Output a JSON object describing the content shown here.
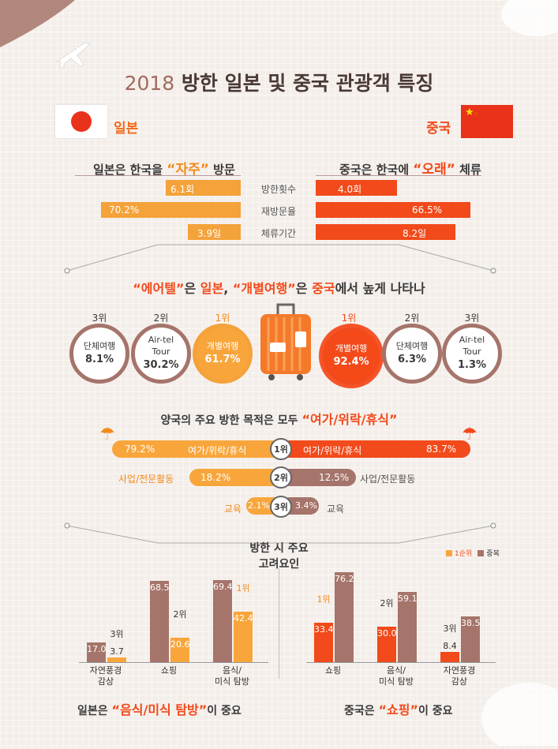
{
  "title_year": "2018",
  "title_rest": "방한 일본 및 중국 관광객 특징",
  "japan_label": "일본",
  "china_label": "중국",
  "japan_head_pre": "일본은 한국을",
  "japan_head_hl": "“자주”",
  "japan_head_post": "방문",
  "china_head_pre": "중국은 한국에",
  "china_head_hl": "“오래”",
  "china_head_post": "체류",
  "compare": [
    {
      "label": "방한횟수",
      "japan": "6.1회",
      "china": "4.0회"
    },
    {
      "label": "재방문율",
      "japan": "70.2%",
      "china": "66.5%"
    },
    {
      "label": "체류기간",
      "japan": "3.9일",
      "china": "8.2일"
    }
  ],
  "travel_head": {
    "a": "“에어텔”",
    "b": "은",
    "c": "일본",
    "d": ",",
    "e": "“개별여행”",
    "f": "은",
    "g": "중국",
    "h": "에서 높게 나타나"
  },
  "japan_types": [
    {
      "rank": "3위",
      "name": "단체여행",
      "value": "8.1%"
    },
    {
      "rank": "2위",
      "name": "Air-tel Tour",
      "value": "30.2%"
    },
    {
      "rank": "1위",
      "name": "개별여행",
      "value": "61.7%"
    }
  ],
  "china_types": [
    {
      "rank": "1위",
      "name": "개별여행",
      "value": "92.4%"
    },
    {
      "rank": "2위",
      "name": "단체여행",
      "value": "6.3%"
    },
    {
      "rank": "3위",
      "name": "Air-tel Tour",
      "value": "1.3%"
    }
  ],
  "purpose_head_pre": "양국의 주요 방한 목적은 모두",
  "purpose_head_hl": "“여가/위락/휴식”",
  "purposes": [
    {
      "rank": "1위",
      "japan_name": "여가/위락/휴식",
      "japan_value": "79.2%",
      "china_name": "여가/위락/휴식",
      "china_value": "83.7%"
    },
    {
      "rank": "2위",
      "japan_name": "사업/전문활동",
      "japan_value": "18.2%",
      "china_name": "사업/전문활동",
      "china_value": "12.5%"
    },
    {
      "rank": "3위",
      "japan_name": "교육",
      "japan_value": "2.1%",
      "china_name": "교육",
      "china_value": "3.4%"
    }
  ],
  "factor_title_1": "방한 시 주요",
  "factor_title_2": "고려요인",
  "legend_first": "1순위",
  "legend_multi": "중복",
  "colors": {
    "brown": "#a5746a",
    "orange": "#f8a63c",
    "red": "#f24a1a"
  },
  "chart_data": [
    {
      "type": "bar",
      "title": "일본 방한 시 주요 고려요인",
      "categories": [
        "자연풍경 감상",
        "쇼핑",
        "음식/미식 탐방"
      ],
      "series": [
        {
          "name": "중복",
          "values": [
            17.0,
            68.5,
            69.4
          ]
        },
        {
          "name": "1순위",
          "values": [
            3.7,
            20.6,
            42.4
          ]
        }
      ],
      "value_labels": {
        "multi": [
          "17.0",
          "68.5",
          "69.4"
        ],
        "first": [
          "3.7",
          "20.6",
          "42.4"
        ]
      },
      "ranks": [
        "3위",
        "2위",
        "1위"
      ],
      "ylim": [
        0,
        80
      ]
    },
    {
      "type": "bar",
      "title": "중국 방한 시 주요 고려요인",
      "categories": [
        "쇼핑",
        "음식/ 미식 탐방",
        "자연풍경 감상"
      ],
      "series": [
        {
          "name": "1순위",
          "values": [
            33.4,
            30.0,
            8.4
          ]
        },
        {
          "name": "중복",
          "values": [
            76.2,
            59.1,
            38.5
          ]
        }
      ],
      "value_labels": {
        "first": [
          "33.4",
          "30.0",
          "8.4"
        ],
        "multi": [
          "76.2",
          "59.1",
          "38.5"
        ]
      },
      "ranks": [
        "1위",
        "2위",
        "3위"
      ],
      "ylim": [
        0,
        80
      ]
    }
  ],
  "japan_factor_cats": [
    "자연풍경\n감상",
    "쇼핑",
    "음식/\n미식 탐방"
  ],
  "china_factor_cats": [
    "쇼핑",
    "음식/\n미식 탐방",
    "자연풍경\n감상"
  ],
  "japan_conclusion": {
    "pre": "일본은",
    "hl": "“음식/미식 탐방”",
    "post": "이 중요"
  },
  "china_conclusion": {
    "pre": "중국은",
    "hl": "“쇼핑”",
    "post": "이 중요"
  }
}
